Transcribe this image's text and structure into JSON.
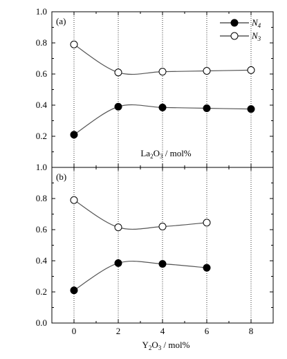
{
  "chart_data": [
    {
      "type": "line",
      "panel_label": "(a)",
      "xlabel": {
        "main": "La",
        "sub": "2",
        "main2": "O",
        "sub2": "3",
        "rest": " / mol%"
      },
      "ylabel": "",
      "x": [
        0,
        2,
        4,
        6,
        8
      ],
      "ylim": [
        0.0,
        1.0
      ],
      "yticks": [
        "0.0",
        "0.2",
        "0.4",
        "0.6",
        "0.8",
        "1.0"
      ],
      "grid": "vertical dotted at x ticks",
      "series": [
        {
          "name": "N4",
          "marker": "filled-circle",
          "values": [
            0.21,
            0.39,
            0.385,
            0.38,
            0.375
          ]
        },
        {
          "name": "N3",
          "marker": "open-circle",
          "values": [
            0.79,
            0.61,
            0.615,
            0.62,
            0.625
          ]
        }
      ],
      "legend": {
        "position": "top-right",
        "entries": [
          {
            "base": "N",
            "sub": "4"
          },
          {
            "base": "N",
            "sub": "3"
          }
        ]
      }
    },
    {
      "type": "line",
      "panel_label": "(b)",
      "xlabel": {
        "main": "Y",
        "sub": "2",
        "main2": "O",
        "sub2": "3",
        "rest": " / mol%"
      },
      "ylabel": "",
      "x": [
        0,
        2,
        4,
        6
      ],
      "xlim": [
        -1,
        9
      ],
      "xticks": [
        "0",
        "2",
        "4",
        "6",
        "8"
      ],
      "ylim": [
        0.0,
        1.0
      ],
      "yticks": [
        "0.0",
        "0.2",
        "0.4",
        "0.6",
        "0.8",
        "1.0"
      ],
      "grid": "vertical dotted at x ticks",
      "series": [
        {
          "name": "N4",
          "marker": "filled-circle",
          "values": [
            0.21,
            0.385,
            0.38,
            0.355
          ]
        },
        {
          "name": "N3",
          "marker": "open-circle",
          "values": [
            0.79,
            0.615,
            0.62,
            0.645
          ]
        }
      ]
    }
  ],
  "colors": {
    "line": "#000000",
    "curve": "#555555",
    "marker_fill": "#000000",
    "marker_open": "#ffffff"
  }
}
